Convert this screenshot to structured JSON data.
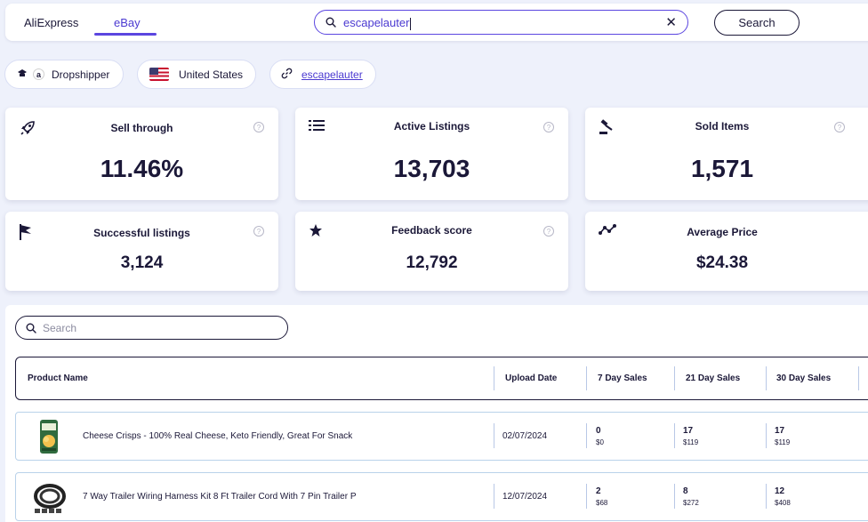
{
  "header": {
    "tabs": [
      {
        "label": "AliExpress",
        "active": false
      },
      {
        "label": "eBay",
        "active": true
      }
    ],
    "search_value": "escapelauter",
    "search_button": "Search",
    "accent_color": "#5b46e0"
  },
  "chips": {
    "dropshipper": "Dropshipper",
    "country": "United States",
    "store_link": "escapelauter"
  },
  "stats": [
    {
      "title": "Sell through",
      "value": "11.46%",
      "icon": "rocket-icon"
    },
    {
      "title": "Active Listings",
      "value": "13,703",
      "icon": "list-icon"
    },
    {
      "title": "Sold Items",
      "value": "1,571",
      "icon": "gavel-icon"
    },
    {
      "title": "Successful listings",
      "value": "3,124",
      "icon": "flag-icon"
    },
    {
      "title": "Feedback score",
      "value": "12,792",
      "icon": "star-icon"
    },
    {
      "title": "Average Price",
      "value": "$24.38",
      "icon": "trend-icon"
    }
  ],
  "table": {
    "search_placeholder": "Search",
    "columns": [
      "Product Name",
      "Upload Date",
      "7 Day Sales",
      "21 Day Sales",
      "30 Day Sales"
    ],
    "rows": [
      {
        "name": "Cheese Crisps - 100% Real Cheese, Keto Friendly, Great For Snack",
        "date": "02/07/2024",
        "s7": "0",
        "s7_rev": "$0",
        "s21": "17",
        "s21_rev": "$119",
        "s30": "17",
        "s30_rev": "$119"
      },
      {
        "name": "7 Way Trailer Wiring Harness Kit 8 Ft Trailer Cord With 7 Pin Trailer P",
        "date": "12/07/2024",
        "s7": "2",
        "s7_rev": "$68",
        "s21": "8",
        "s21_rev": "$272",
        "s30": "12",
        "s30_rev": "$408"
      }
    ]
  }
}
